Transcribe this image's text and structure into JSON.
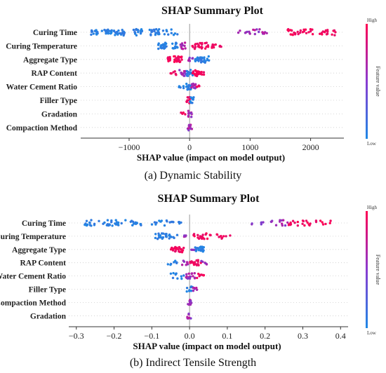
{
  "colors": {
    "low": "#1e88e5",
    "high": "#ff0052",
    "axis": "#333333",
    "zero_line": "#999999"
  },
  "panels": [
    {
      "caption": "(a) Dynamic Stability",
      "chart_data": {
        "type": "scatter",
        "title": "SHAP Summary Plot",
        "xlabel": "SHAP value (impact on model output)",
        "colorbar_label": "Feature value",
        "colorbar_high": "High",
        "colorbar_low": "Low",
        "features": [
          "Curing Time",
          "Curing Temperature",
          "Aggregate Type",
          "RAP Content",
          "Water Cement Ratio",
          "Filler Type",
          "Gradation",
          "Compaction Method"
        ],
        "xlim": [
          -1800,
          2550
        ],
        "xticks": [
          -1000,
          0,
          1000,
          2000
        ],
        "xtick_labels": [
          "−1000",
          "0",
          "1000",
          "2000"
        ],
        "clusters": [
          [
            [
              -1650,
              -1520,
              14,
              "low"
            ],
            [
              -1450,
              -1280,
              16,
              "low"
            ],
            [
              -1250,
              -1050,
              20,
              "low"
            ],
            [
              -950,
              -750,
              16,
              "low"
            ],
            [
              -700,
              -500,
              18,
              "low"
            ],
            [
              -450,
              -150,
              10,
              "low"
            ],
            [
              780,
              1000,
              8,
              "mid"
            ],
            [
              1050,
              1280,
              12,
              "mid"
            ],
            [
              1620,
              1800,
              14,
              "high"
            ],
            [
              1820,
              2050,
              12,
              "high"
            ],
            [
              2150,
              2420,
              16,
              "high"
            ]
          ],
          [
            [
              -520,
              -380,
              22,
              "low"
            ],
            [
              -300,
              -200,
              12,
              "low"
            ],
            [
              -150,
              -70,
              10,
              "mid"
            ],
            [
              30,
              220,
              18,
              "high"
            ],
            [
              240,
              420,
              12,
              "high"
            ],
            [
              430,
              530,
              4,
              "high"
            ]
          ],
          [
            [
              -380,
              -270,
              8,
              "high"
            ],
            [
              -260,
              -120,
              22,
              "high"
            ],
            [
              -30,
              80,
              6,
              "mid"
            ],
            [
              90,
              220,
              20,
              "low"
            ],
            [
              230,
              330,
              10,
              "low"
            ]
          ],
          [
            [
              -330,
              -220,
              6,
              "high"
            ],
            [
              -180,
              -60,
              14,
              "mid"
            ],
            [
              -50,
              60,
              14,
              "low"
            ],
            [
              50,
              170,
              22,
              "high"
            ],
            [
              160,
              240,
              6,
              "high"
            ]
          ],
          [
            [
              -180,
              -80,
              6,
              "low"
            ],
            [
              -60,
              30,
              16,
              "low"
            ],
            [
              30,
              120,
              10,
              "mid"
            ],
            [
              120,
              170,
              4,
              "high"
            ]
          ],
          [
            [
              -70,
              10,
              10,
              "high"
            ],
            [
              10,
              70,
              12,
              "low"
            ]
          ],
          [
            [
              -160,
              -60,
              4,
              "high"
            ],
            [
              -30,
              40,
              10,
              "mid"
            ]
          ],
          [
            [
              -40,
              40,
              12,
              "mid"
            ]
          ]
        ]
      }
    },
    {
      "caption": "(b) Indirect Tensile Strength",
      "chart_data": {
        "type": "scatter",
        "title": "SHAP Summary Plot",
        "xlabel": "SHAP value (impact on model output)",
        "colorbar_label": "Feature value",
        "colorbar_high": "High",
        "colorbar_low": "Low",
        "features": [
          "Curing Time",
          "Curing Temperature",
          "Aggregate Type",
          "RAP Content",
          "Water Cement Ratio",
          "Filler Type",
          "Compaction Method",
          "Gradation"
        ],
        "xlim": [
          -0.32,
          0.42
        ],
        "xticks": [
          -0.3,
          -0.2,
          -0.1,
          0.0,
          0.1,
          0.2,
          0.3,
          0.4
        ],
        "xtick_labels": [
          "−0.3",
          "−0.2",
          "−0.1",
          "0.0",
          "0.1",
          "0.2",
          "0.3",
          "0.4"
        ],
        "clusters": [
          [
            [
              -0.28,
              -0.24,
              14,
              "low"
            ],
            [
              -0.23,
              -0.18,
              22,
              "low"
            ],
            [
              -0.17,
              -0.12,
              14,
              "low"
            ],
            [
              -0.1,
              -0.04,
              14,
              "low"
            ],
            [
              -0.03,
              -0.01,
              4,
              "low"
            ],
            [
              0.16,
              0.2,
              6,
              "mid"
            ],
            [
              0.21,
              0.26,
              12,
              "mid"
            ],
            [
              0.26,
              0.32,
              18,
              "high"
            ],
            [
              0.33,
              0.38,
              8,
              "high"
            ]
          ],
          [
            [
              -0.095,
              -0.06,
              22,
              "low"
            ],
            [
              -0.055,
              -0.03,
              8,
              "low"
            ],
            [
              -0.02,
              0.0,
              4,
              "mid"
            ],
            [
              0.01,
              0.05,
              18,
              "high"
            ],
            [
              0.05,
              0.09,
              10,
              "high"
            ],
            [
              0.09,
              0.11,
              3,
              "high"
            ]
          ],
          [
            [
              -0.055,
              -0.04,
              6,
              "high"
            ],
            [
              -0.04,
              -0.015,
              20,
              "high"
            ],
            [
              0.0,
              0.015,
              4,
              "mid"
            ],
            [
              0.015,
              0.04,
              22,
              "low"
            ]
          ],
          [
            [
              -0.06,
              -0.03,
              8,
              "low"
            ],
            [
              -0.02,
              0.0,
              8,
              "mid"
            ],
            [
              0.0,
              0.03,
              16,
              "high"
            ],
            [
              0.03,
              0.05,
              6,
              "mid"
            ]
          ],
          [
            [
              -0.05,
              -0.01,
              10,
              "low"
            ],
            [
              -0.01,
              0.015,
              16,
              "mid"
            ],
            [
              0.015,
              0.04,
              8,
              "high"
            ]
          ],
          [
            [
              -0.008,
              0.008,
              10,
              "low"
            ],
            [
              0.008,
              0.02,
              6,
              "mid"
            ]
          ],
          [
            [
              -0.005,
              0.005,
              12,
              "mid"
            ]
          ],
          [
            [
              -0.006,
              0.006,
              10,
              "mid"
            ]
          ]
        ]
      }
    }
  ]
}
